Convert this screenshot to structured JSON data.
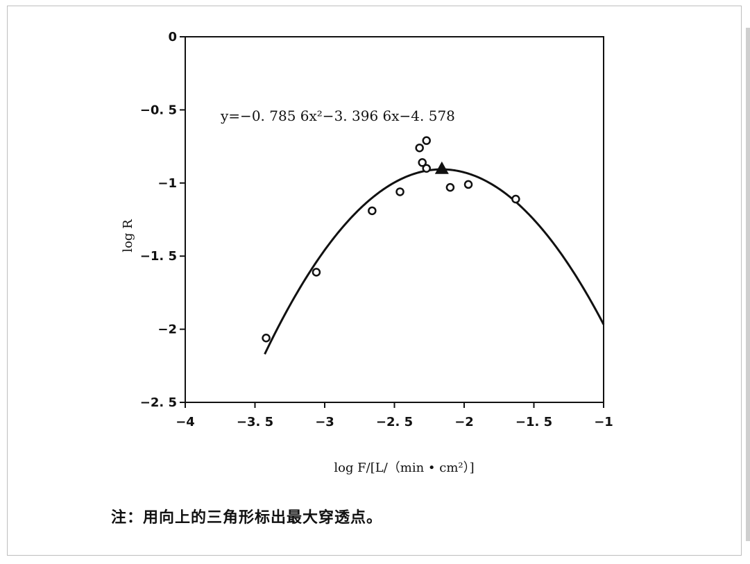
{
  "chart_data": {
    "type": "scatter",
    "xlabel": "log F/[L/（min • cm²）]",
    "ylabel": "log R",
    "xlim": [
      -4,
      -1
    ],
    "ylim": [
      -2.5,
      0
    ],
    "x_ticks": [
      {
        "value": -4,
        "label": "−4"
      },
      {
        "value": -3.5,
        "label": "−3. 5"
      },
      {
        "value": -3,
        "label": "−3"
      },
      {
        "value": -2.5,
        "label": "−2. 5"
      },
      {
        "value": -2,
        "label": "−2"
      },
      {
        "value": -1.5,
        "label": "−1. 5"
      },
      {
        "value": -1,
        "label": "−1"
      }
    ],
    "y_ticks": [
      {
        "value": 0,
        "label": "0"
      },
      {
        "value": -0.5,
        "label": "−0. 5"
      },
      {
        "value": -1,
        "label": "−1"
      },
      {
        "value": -1.5,
        "label": "−1. 5"
      },
      {
        "value": -2,
        "label": "−2"
      },
      {
        "value": -2.5,
        "label": "−2. 5"
      }
    ],
    "equation": "y=−0. 785  6x²−3. 396  6x−4. 578",
    "fit": {
      "a": -0.7856,
      "b": -3.3966,
      "c": -4.578,
      "x_range": [
        -3.43,
        -1.0
      ]
    },
    "points": [
      {
        "x": -3.42,
        "y": -2.06
      },
      {
        "x": -3.06,
        "y": -1.61
      },
      {
        "x": -2.66,
        "y": -1.19
      },
      {
        "x": -2.46,
        "y": -1.06
      },
      {
        "x": -2.32,
        "y": -0.76
      },
      {
        "x": -2.3,
        "y": -0.86
      },
      {
        "x": -2.27,
        "y": -0.71
      },
      {
        "x": -2.27,
        "y": -0.9
      },
      {
        "x": -2.1,
        "y": -1.03
      },
      {
        "x": -1.97,
        "y": -1.01
      },
      {
        "x": -1.63,
        "y": -1.11
      }
    ],
    "max_point": {
      "x": -2.16,
      "y": -0.905
    },
    "grid": false
  },
  "note": "注：用向上的三角形标出最大穿透点。"
}
